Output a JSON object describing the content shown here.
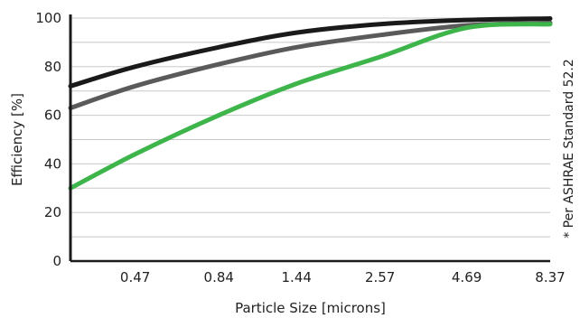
{
  "chart_data": {
    "type": "line",
    "xlabel": "Particle Size [microns]",
    "ylabel": "Efficiency [%]",
    "note": "* Per ASHRAE Standard 52.2",
    "x": [
      0.3,
      0.47,
      0.84,
      1.44,
      2.57,
      4.69,
      8.37
    ],
    "x_tick_labels": [
      "0.47",
      "0.84",
      "1.44",
      "2.57",
      "4.69",
      "8.37"
    ],
    "y_ticks": [
      0,
      20,
      40,
      60,
      80,
      100
    ],
    "ylim": [
      0,
      100
    ],
    "grid": true,
    "series": [
      {
        "color": "#1a1a1a",
        "values": [
          72,
          80,
          88,
          94,
          97.5,
          99.2,
          99.8
        ]
      },
      {
        "color": "#5a5a5a",
        "values": [
          63,
          72,
          81,
          88,
          93,
          97,
          98
        ]
      },
      {
        "color": "#3db54a",
        "values": [
          30,
          44,
          60,
          73,
          84,
          96,
          97.5
        ]
      }
    ]
  }
}
